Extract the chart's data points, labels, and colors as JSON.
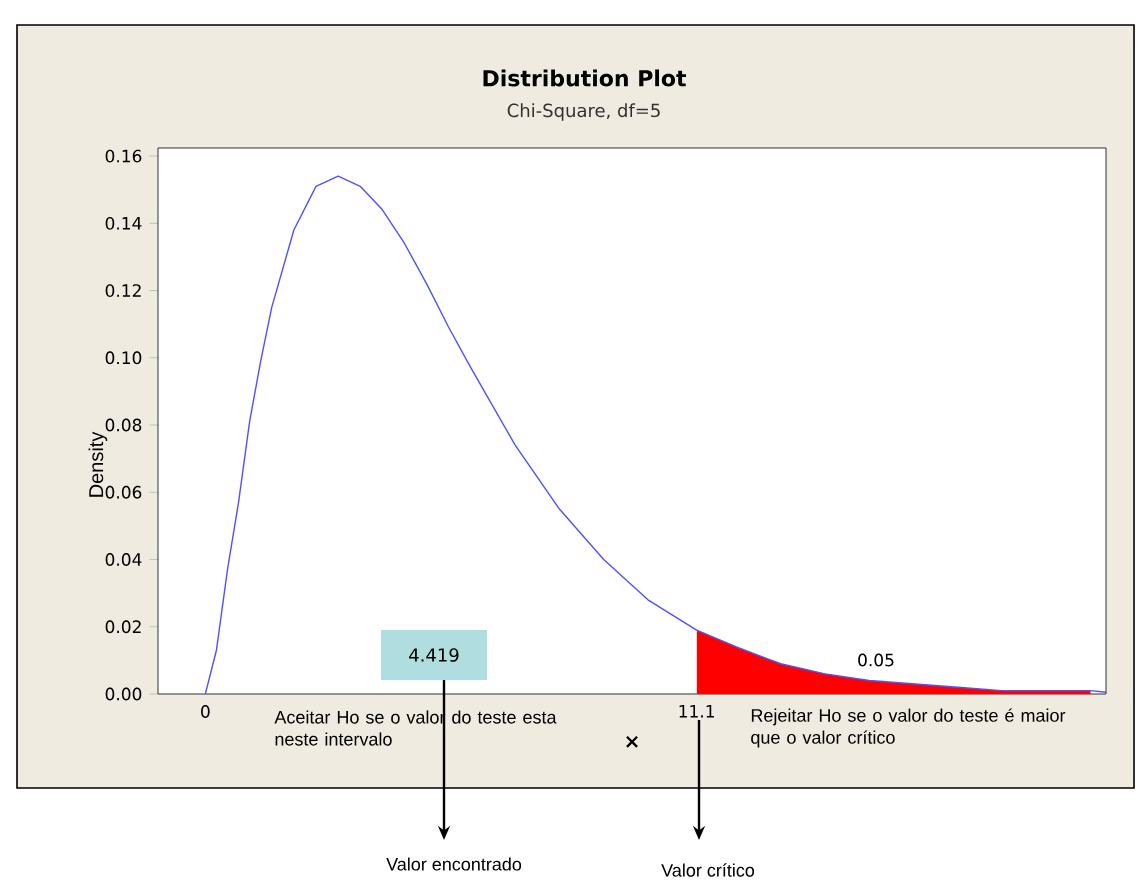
{
  "chart_data": {
    "type": "line",
    "title": "Distribution Plot",
    "subtitle": "Chi-Square, df=5",
    "ylabel": "Density",
    "xlim": [
      -1.07,
      20.35
    ],
    "ylim": [
      0,
      0.1624
    ],
    "xticks": [
      0,
      11.1
    ],
    "yticks": [
      {
        "value": 0,
        "label": "0.00"
      },
      {
        "value": 0.02,
        "label": "0.02"
      },
      {
        "value": 0.04,
        "label": "0.04"
      },
      {
        "value": 0.06,
        "label": "0.06"
      },
      {
        "value": 0.08,
        "label": "0.08"
      },
      {
        "value": 0.1,
        "label": "0.10"
      },
      {
        "value": 0.12,
        "label": "0.12"
      },
      {
        "value": 0.14,
        "label": "0.14"
      },
      {
        "value": 0.16,
        "label": "0.16"
      }
    ],
    "series": [
      {
        "color": "#5050ff",
        "x": [
          0,
          0.25,
          0.5,
          0.75,
          1,
          1.25,
          1.5,
          2,
          2.5,
          3,
          3.5,
          4,
          4.5,
          5,
          5.5,
          6,
          7,
          8,
          9,
          10,
          11.1,
          12,
          13,
          14,
          15,
          16,
          17,
          18,
          19,
          20,
          20.35
        ],
        "values": [
          0,
          0.013,
          0.037,
          0.057,
          0.081,
          0.099,
          0.115,
          0.138,
          0.151,
          0.154,
          0.151,
          0.144,
          0.134,
          0.122,
          0.109,
          0.097,
          0.074,
          0.055,
          0.04,
          0.028,
          0.019,
          0.014,
          0.009,
          0.006,
          0.004,
          0.003,
          0.002,
          0.001,
          0.001,
          0.001,
          0.0005
        ]
      },
      {
        "type": "area",
        "color": "#ff0000",
        "x": [
          11.1,
          12,
          13,
          14,
          15,
          16,
          17,
          18,
          19,
          20
        ],
        "values": [
          0.019,
          0.014,
          0.009,
          0.006,
          0.004,
          0.003,
          0.002,
          0.001,
          0.001,
          0.001
        ]
      }
    ],
    "annotations": [
      "4.419",
      "0.05",
      "Aceitar Ho se o valor do teste esta neste intervalo",
      "×",
      "Rejeitar Ho se o valor do teste é maior que o valor crítico",
      "Valor encontrado",
      "Valor crítico"
    ]
  }
}
